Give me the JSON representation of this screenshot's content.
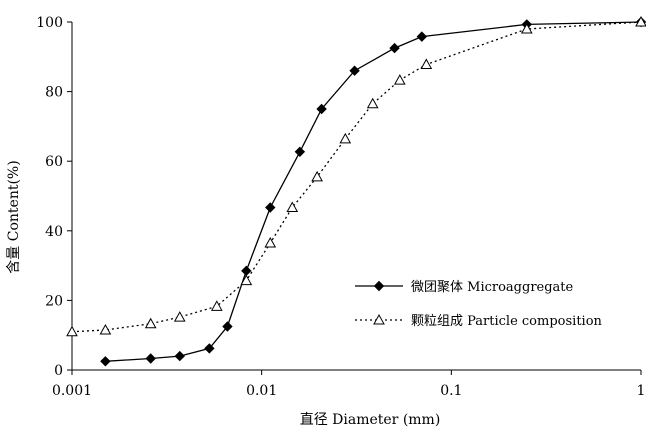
{
  "chart_data": {
    "type": "line",
    "x_scale": "log",
    "xlabel": "直径 Diameter (mm)",
    "ylabel": "含量 Content(%)",
    "xlim": [
      0.001,
      1
    ],
    "ylim": [
      0,
      100
    ],
    "x_ticks": [
      "0.001",
      "0.01",
      "0.1",
      "1"
    ],
    "y_ticks": [
      "0",
      "20",
      "40",
      "60",
      "80",
      "100"
    ],
    "grid": false,
    "legend_position": "right",
    "series": [
      {
        "name": "微团聚体 Microaggregate",
        "line_style": "solid",
        "marker": "filled-diamond",
        "x": [
          0.0015,
          0.0026,
          0.0037,
          0.0053,
          0.0066,
          0.0083,
          0.0111,
          0.0159,
          0.0207,
          0.0309,
          0.0502,
          0.0699,
          0.25,
          1
        ],
        "y": [
          2.5,
          3.3,
          4.0,
          6.2,
          12.5,
          28.5,
          46.7,
          62.7,
          75.0,
          86.0,
          92.5,
          95.8,
          99.3,
          100.0
        ]
      },
      {
        "name": "颗粒组成 Particle composition",
        "line_style": "dotted",
        "marker": "open-triangle",
        "x": [
          0.001,
          0.0015,
          0.0026,
          0.0037,
          0.0058,
          0.0083,
          0.0111,
          0.0145,
          0.0196,
          0.0276,
          0.0385,
          0.0535,
          0.0738,
          0.25,
          1
        ],
        "y": [
          11.0,
          11.5,
          13.3,
          15.2,
          18.3,
          25.7,
          36.5,
          46.7,
          55.5,
          66.4,
          76.5,
          83.3,
          87.8,
          98.0,
          100.0
        ]
      }
    ]
  }
}
